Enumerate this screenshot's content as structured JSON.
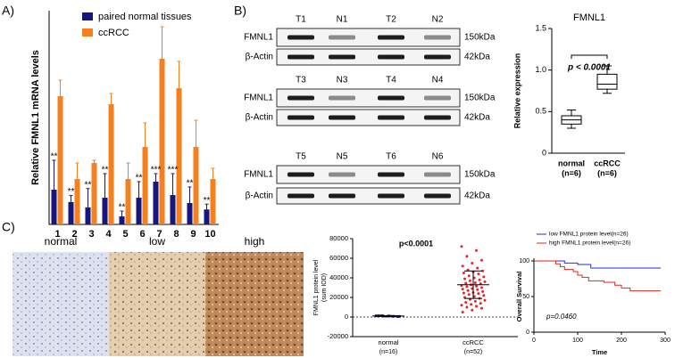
{
  "panel_labels": [
    "A)",
    "B)",
    "C)"
  ],
  "blots": [
    {
      "lanes": [
        "T1",
        "N1",
        "T2",
        "N2"
      ],
      "rows": [
        {
          "label": "FMNL1",
          "size": "150kDa"
        },
        {
          "label": "β-Actin",
          "size": "42kDa"
        }
      ]
    },
    {
      "lanes": [
        "T3",
        "N3",
        "T4",
        "N4"
      ],
      "rows": [
        {
          "label": "FMNL1",
          "size": "150kDa"
        },
        {
          "label": "β-Actin",
          "size": "42kDa"
        }
      ]
    },
    {
      "lanes": [
        "T5",
        "N5",
        "T6",
        "N6"
      ],
      "rows": [
        {
          "label": "FMNL1",
          "size": "150kDa"
        },
        {
          "label": "β-Actin",
          "size": "42kDa"
        }
      ]
    }
  ],
  "ihc_labels": [
    "normal",
    "low",
    "high"
  ],
  "chart_data": [
    {
      "type": "bar",
      "ylabel": "Relative FMNL1 mRNA levels",
      "categories": [
        "1",
        "2",
        "3",
        "4",
        "5",
        "6",
        "7",
        "8",
        "9",
        "10"
      ],
      "ylim": [
        0,
        4
      ],
      "series": [
        {
          "name": "paired normal tissues",
          "color": "#16167f",
          "values": [
            0.65,
            0.42,
            0.32,
            0.5,
            0.15,
            0.5,
            0.8,
            0.55,
            0.4,
            0.28
          ],
          "errors": [
            0.55,
            0.12,
            0.35,
            0.45,
            0.1,
            0.3,
            0.15,
            0.4,
            0.3,
            0.1
          ]
        },
        {
          "name": "ccRCC",
          "color": "#f7801e",
          "values": [
            2.4,
            0.85,
            1.15,
            2.25,
            0.85,
            1.45,
            3.1,
            2.55,
            1.45,
            0.85
          ],
          "errors": [
            0.3,
            0.3,
            0.05,
            0.2,
            0.3,
            0.45,
            0.6,
            0.5,
            0.5,
            0.2
          ]
        }
      ],
      "annotations": [
        "**",
        "**",
        "**",
        "**",
        "**",
        "**",
        "***",
        "***",
        "**",
        "**"
      ]
    },
    {
      "type": "box",
      "title": "FMNL1",
      "ylabel": "Relative expression",
      "annotation": "p < 0.0001",
      "categories": [
        "normal",
        "ccRCC"
      ],
      "category_sublabels": [
        "(n=6)",
        "(n=6)"
      ],
      "ylim": [
        0,
        1.5
      ],
      "yticks": [
        0,
        0.5,
        {
          "value": 1.0,
          "label": "1.0"
        },
        1.5
      ],
      "boxes": [
        {
          "min": 0.3,
          "q1": 0.35,
          "median": 0.4,
          "q3": 0.45,
          "max": 0.52
        },
        {
          "min": 0.72,
          "q1": 0.77,
          "median": 0.83,
          "q3": 0.95,
          "max": 1.05
        }
      ]
    },
    {
      "type": "scatter",
      "ylabel": [
        "FMNL1 protein level",
        "(sum IOD)"
      ],
      "annotation": "p<0.0001",
      "categories": [
        "normal",
        "ccRCC"
      ],
      "category_sublabels": [
        "(n=16)",
        "(n=52)"
      ],
      "ylim": [
        -20000,
        80000
      ],
      "yticks": [
        -20000,
        0,
        20000,
        40000,
        60000,
        80000
      ],
      "groups": [
        {
          "color": "#16167f",
          "mean": 1000,
          "sd": 300,
          "values": [
            1200,
            800,
            1500,
            600,
            900,
            1100,
            700,
            1300,
            500,
            1000,
            1400,
            850,
            950,
            650,
            1150,
            1250
          ]
        },
        {
          "color": "#e3262a",
          "mean": 33000,
          "sd": 14000,
          "values": [
            72000,
            68000,
            62000,
            58000,
            55000,
            52000,
            50000,
            48000,
            47000,
            46000,
            45000,
            44000,
            42000,
            41000,
            40000,
            39000,
            38000,
            37000,
            36000,
            35000,
            34500,
            34000,
            33000,
            32000,
            31500,
            31000,
            30000,
            29000,
            28500,
            28000,
            27000,
            26000,
            25000,
            24500,
            24000,
            23000,
            22000,
            21000,
            20000,
            19000,
            18000,
            17000,
            16000,
            15000,
            14000,
            13000,
            12000,
            11000,
            10000,
            9000,
            7000,
            5000
          ]
        }
      ]
    },
    {
      "type": "survival",
      "xlabel": "Time",
      "ylabel": "Overall Survival",
      "annotation": "p=0.0460",
      "xlim": [
        0,
        300
      ],
      "xticks": [
        0,
        100,
        200,
        300
      ],
      "ylim": [
        0,
        100
      ],
      "yticks": [
        0,
        50,
        100
      ],
      "series": [
        {
          "name": "low FMNL1 protein level(n=26)",
          "color": "#2a2ae0",
          "x": [
            0,
            70,
            100,
            130,
            290
          ],
          "values": [
            100,
            97,
            95,
            90,
            90
          ]
        },
        {
          "name": "high FMNL1 protein level(n=26)",
          "color": "#e02424",
          "x": [
            0,
            50,
            60,
            70,
            90,
            100,
            110,
            125,
            160,
            185,
            200,
            220,
            290
          ],
          "values": [
            100,
            96,
            92,
            88,
            85,
            80,
            77,
            72,
            70,
            66,
            62,
            58,
            58
          ]
        }
      ]
    }
  ]
}
